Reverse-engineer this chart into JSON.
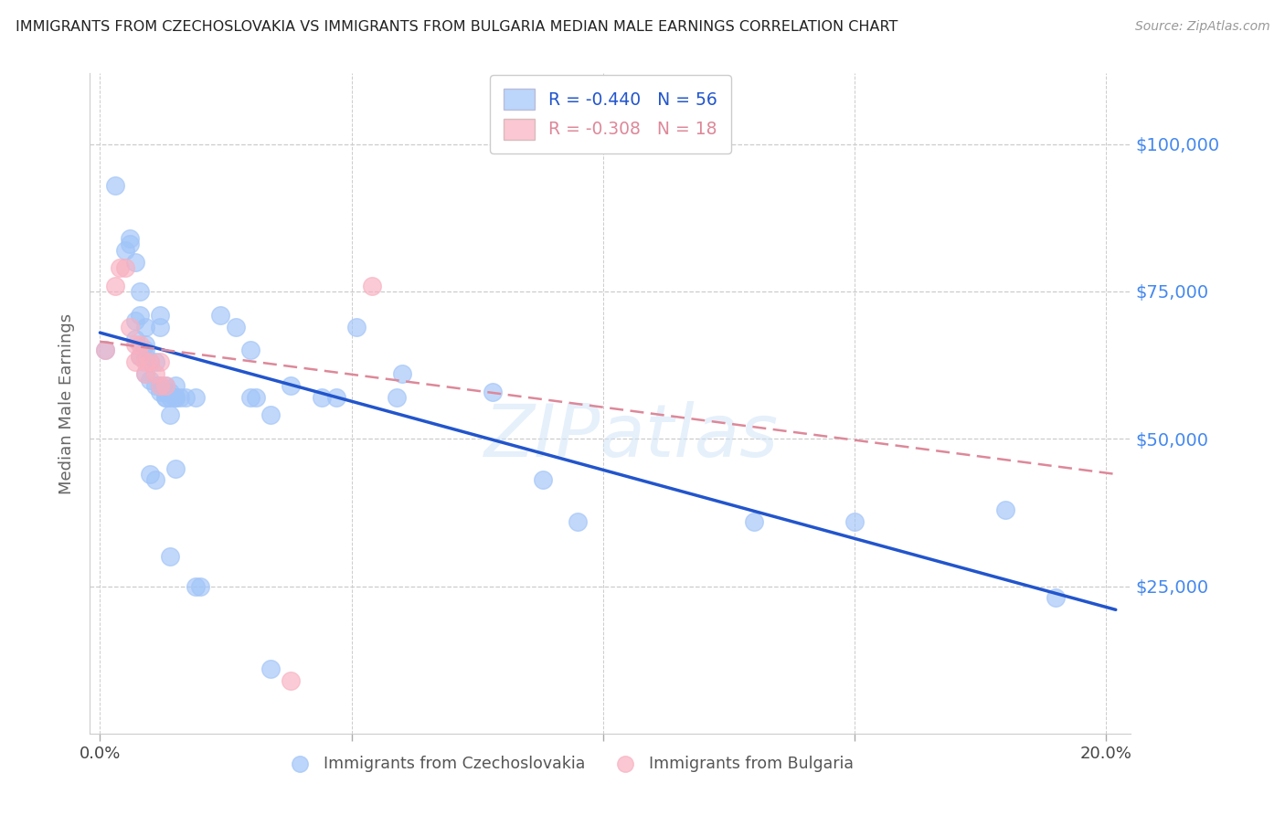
{
  "title": "IMMIGRANTS FROM CZECHOSLOVAKIA VS IMMIGRANTS FROM BULGARIA MEDIAN MALE EARNINGS CORRELATION CHART",
  "source": "Source: ZipAtlas.com",
  "ylabel": "Median Male Earnings",
  "ytick_labels": [
    "$25,000",
    "$50,000",
    "$75,000",
    "$100,000"
  ],
  "ytick_vals": [
    25000,
    50000,
    75000,
    100000
  ],
  "ylim": [
    0,
    112000
  ],
  "xlim": [
    -0.002,
    0.205
  ],
  "watermark": "ZIPatlas",
  "background_color": "#ffffff",
  "grid_color": "#cccccc",
  "right_tick_color": "#4488ee",
  "scatter_blue_color": "#a0c4f8",
  "scatter_pink_color": "#f8b0c0",
  "line_blue_color": "#2255cc",
  "line_pink_color": "#dd8899",
  "czech_points": [
    [
      0.001,
      65000
    ],
    [
      0.003,
      93000
    ],
    [
      0.005,
      82000
    ],
    [
      0.006,
      84000
    ],
    [
      0.006,
      83000
    ],
    [
      0.007,
      80000
    ],
    [
      0.007,
      70000
    ],
    [
      0.007,
      67000
    ],
    [
      0.008,
      64000
    ],
    [
      0.008,
      75000
    ],
    [
      0.008,
      71000
    ],
    [
      0.009,
      65000
    ],
    [
      0.009,
      66000
    ],
    [
      0.009,
      69000
    ],
    [
      0.009,
      64000
    ],
    [
      0.009,
      61000
    ],
    [
      0.01,
      63000
    ],
    [
      0.01,
      60000
    ],
    [
      0.011,
      63000
    ],
    [
      0.011,
      59000
    ],
    [
      0.012,
      71000
    ],
    [
      0.012,
      69000
    ],
    [
      0.012,
      58000
    ],
    [
      0.012,
      59000
    ],
    [
      0.013,
      57000
    ],
    [
      0.013,
      59000
    ],
    [
      0.013,
      57000
    ],
    [
      0.013,
      58000
    ],
    [
      0.014,
      58000
    ],
    [
      0.014,
      54000
    ],
    [
      0.014,
      57000
    ],
    [
      0.015,
      57000
    ],
    [
      0.015,
      59000
    ],
    [
      0.015,
      57000
    ],
    [
      0.016,
      57000
    ],
    [
      0.017,
      57000
    ],
    [
      0.019,
      57000
    ],
    [
      0.024,
      71000
    ],
    [
      0.027,
      69000
    ],
    [
      0.03,
      65000
    ],
    [
      0.03,
      57000
    ],
    [
      0.031,
      57000
    ],
    [
      0.034,
      54000
    ],
    [
      0.038,
      59000
    ],
    [
      0.044,
      57000
    ],
    [
      0.047,
      57000
    ],
    [
      0.051,
      69000
    ],
    [
      0.059,
      57000
    ],
    [
      0.06,
      61000
    ],
    [
      0.078,
      58000
    ],
    [
      0.01,
      44000
    ],
    [
      0.011,
      43000
    ],
    [
      0.014,
      30000
    ],
    [
      0.015,
      45000
    ],
    [
      0.019,
      25000
    ],
    [
      0.02,
      25000
    ],
    [
      0.034,
      11000
    ],
    [
      0.088,
      43000
    ],
    [
      0.095,
      36000
    ],
    [
      0.18,
      38000
    ],
    [
      0.19,
      23000
    ],
    [
      0.15,
      36000
    ],
    [
      0.13,
      36000
    ]
  ],
  "bulgaria_points": [
    [
      0.001,
      65000
    ],
    [
      0.003,
      76000
    ],
    [
      0.004,
      79000
    ],
    [
      0.005,
      79000
    ],
    [
      0.006,
      69000
    ],
    [
      0.007,
      66000
    ],
    [
      0.007,
      63000
    ],
    [
      0.008,
      66000
    ],
    [
      0.008,
      64000
    ],
    [
      0.009,
      63000
    ],
    [
      0.009,
      61000
    ],
    [
      0.01,
      63000
    ],
    [
      0.011,
      61000
    ],
    [
      0.012,
      63000
    ],
    [
      0.012,
      59000
    ],
    [
      0.013,
      59000
    ],
    [
      0.054,
      76000
    ],
    [
      0.038,
      9000
    ]
  ],
  "czech_line_x": [
    0.0,
    0.202
  ],
  "czech_line_y": [
    68000,
    21000
  ],
  "bulgaria_line_x": [
    0.0,
    0.202
  ],
  "bulgaria_line_y": [
    66500,
    44000
  ],
  "xtick_positions": [
    0.0,
    0.05,
    0.1,
    0.15,
    0.2
  ],
  "xtick_labels": [
    "0.0%",
    "",
    "",
    "",
    "20.0%"
  ]
}
